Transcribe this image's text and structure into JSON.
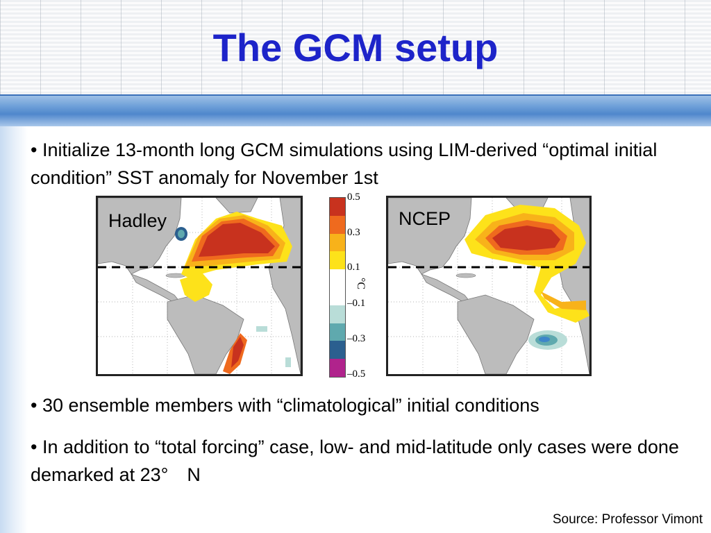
{
  "slide": {
    "title": "The GCM setup",
    "bullets": [
      "• Initialize 13-month long GCM simulations using LIM-derived “optimal initial condition” SST anomaly for November 1st",
      "• 30 ensemble members with “climatological” initial conditions",
      "• In addition to “total forcing” case, low- and mid-latitude only cases were done demarked at 23°　N"
    ],
    "source": "Source: Professor Vimont"
  },
  "figure": {
    "panels": [
      "Hadley",
      "NCEP"
    ],
    "colorbar": {
      "unit": "°C",
      "ticks": [
        "0.5",
        "0.3",
        "0.1",
        "–0.1",
        "–0.3",
        "–0.5"
      ],
      "colors": [
        "#c8321e",
        "#ef6a1e",
        "#f8b21a",
        "#fde21a",
        "#ffffff",
        "#ffffff",
        "#b9ddd8",
        "#5fa9ae",
        "#2b5f8f",
        "#b0238c"
      ]
    }
  }
}
